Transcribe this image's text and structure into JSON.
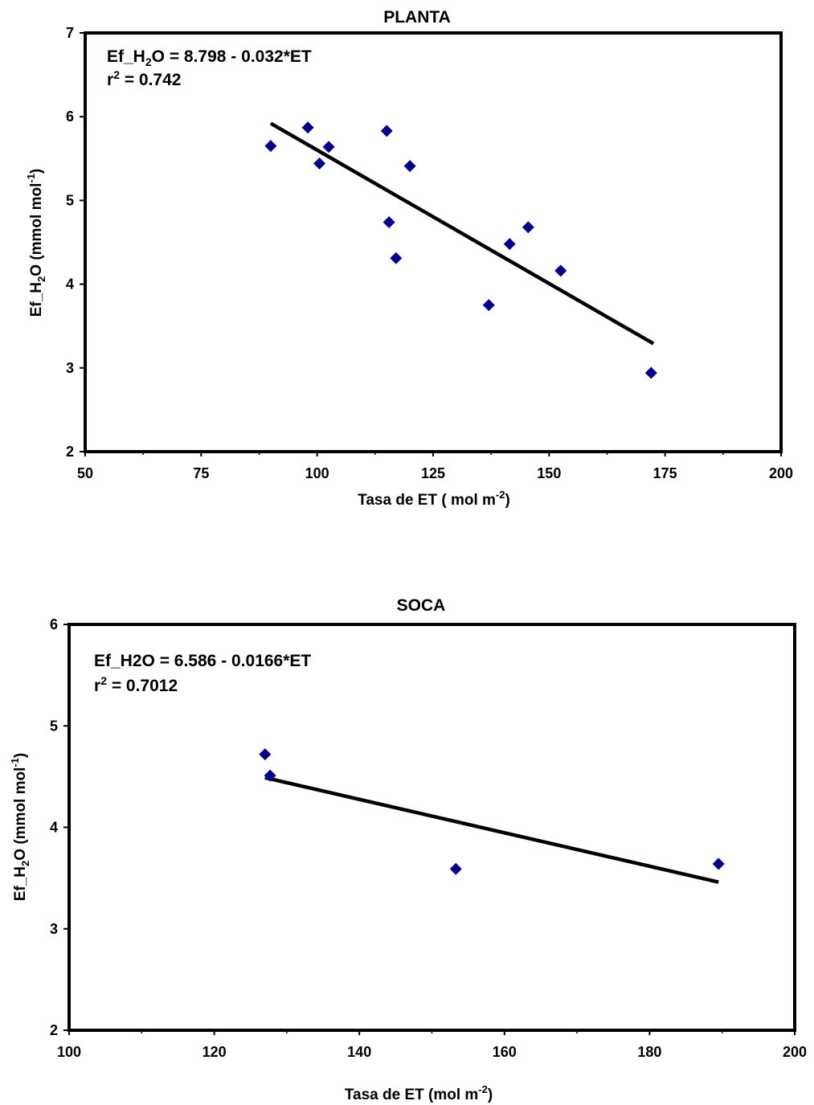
{
  "chart_data": [
    {
      "type": "scatter",
      "title": "PLANTA",
      "x_label": {
        "base": "Tasa de ET  ( mol  m",
        "sup": "-2",
        "end": ")"
      },
      "y_label": {
        "a": "Ef_H",
        "sub": "2",
        "b": "O (mmol mol",
        "sup": "-1",
        "c": ")"
      },
      "xlim": [
        50,
        200
      ],
      "ylim": [
        2,
        7
      ],
      "x_ticks": [
        "50",
        "75",
        "100",
        "125",
        "150",
        "175",
        "200"
      ],
      "y_ticks": [
        "2",
        "3",
        "4",
        "5",
        "6",
        "7"
      ],
      "equation": {
        "a": "Ef_H",
        "sub": "2",
        "b": "O = 8.798 - 0.032*ET"
      },
      "r2": {
        "a": "r",
        "sup": "2",
        "b": " = 0.742"
      },
      "marker_color": "#00008B",
      "points": [
        {
          "x": 90,
          "y": 5.65
        },
        {
          "x": 98,
          "y": 5.87
        },
        {
          "x": 100.5,
          "y": 5.44
        },
        {
          "x": 102.5,
          "y": 5.64
        },
        {
          "x": 115,
          "y": 5.83
        },
        {
          "x": 115.5,
          "y": 4.74
        },
        {
          "x": 117,
          "y": 4.31
        },
        {
          "x": 120,
          "y": 5.41
        },
        {
          "x": 137,
          "y": 3.75
        },
        {
          "x": 141.5,
          "y": 4.48
        },
        {
          "x": 145.5,
          "y": 4.68
        },
        {
          "x": 152.5,
          "y": 4.16
        },
        {
          "x": 172,
          "y": 2.94
        }
      ],
      "trendline": {
        "x": [
          90,
          172.5
        ],
        "y": [
          5.92,
          3.29
        ]
      }
    },
    {
      "type": "scatter",
      "title": "SOCA",
      "x_label": {
        "base": "Tasa de ET  (mol m",
        "sup": "-2",
        "end": ")"
      },
      "y_label": {
        "a": "Ef_H",
        "sub": "2",
        "b": "O (mmol mol",
        "sup": "-1",
        "c": ")"
      },
      "xlim": [
        100,
        200
      ],
      "ylim": [
        2,
        6
      ],
      "x_ticks": [
        "100",
        "120",
        "140",
        "160",
        "180",
        "200"
      ],
      "y_ticks": [
        "2",
        "3",
        "4",
        "5",
        "6"
      ],
      "equation": {
        "a": "Ef_H2O = 6.586 - 0.0166*ET"
      },
      "r2": {
        "a": "r",
        "sup": "2",
        "b": " = 0.7012"
      },
      "marker_color": "#00008B",
      "points": [
        {
          "x": 127,
          "y": 4.72
        },
        {
          "x": 127.7,
          "y": 4.51
        },
        {
          "x": 153.3,
          "y": 3.59
        },
        {
          "x": 189.5,
          "y": 3.64
        }
      ],
      "trendline": {
        "x": [
          127,
          189.5
        ],
        "y": [
          4.49,
          3.46
        ]
      }
    }
  ]
}
